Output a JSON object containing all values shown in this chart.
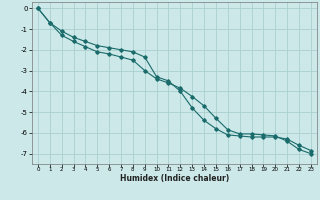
{
  "xlabel": "Humidex (Indice chaleur)",
  "ylabel": "",
  "background_color": "#cce8e8",
  "grid_color": "#aacfcf",
  "line_color": "#1a6b6b",
  "xlim": [
    -0.5,
    23.5
  ],
  "ylim": [
    -7.5,
    0.3
  ],
  "yticks": [
    0,
    -1,
    -2,
    -3,
    -4,
    -5,
    -6,
    -7
  ],
  "xticks": [
    0,
    1,
    2,
    3,
    4,
    5,
    6,
    7,
    8,
    9,
    10,
    11,
    12,
    13,
    14,
    15,
    16,
    17,
    18,
    19,
    20,
    21,
    22,
    23
  ],
  "line1_x": [
    0,
    1,
    2,
    3,
    4,
    5,
    6,
    7,
    8,
    9,
    10,
    11,
    12,
    13,
    14,
    15,
    16,
    17,
    18,
    19,
    20,
    21,
    22,
    23
  ],
  "line1_y": [
    0.0,
    -0.7,
    -1.1,
    -1.4,
    -1.6,
    -1.8,
    -1.9,
    -2.0,
    -2.1,
    -2.35,
    -3.3,
    -3.5,
    -4.0,
    -4.8,
    -5.4,
    -5.8,
    -6.1,
    -6.15,
    -6.2,
    -6.2,
    -6.2,
    -6.3,
    -6.6,
    -6.85
  ],
  "line2_x": [
    0,
    1,
    2,
    3,
    4,
    5,
    6,
    7,
    8,
    9,
    10,
    11,
    12,
    13,
    14,
    15,
    16,
    17,
    18,
    19,
    20,
    21,
    22,
    23
  ],
  "line2_y": [
    0.0,
    -0.7,
    -1.3,
    -1.6,
    -1.85,
    -2.1,
    -2.2,
    -2.35,
    -2.5,
    -3.0,
    -3.4,
    -3.6,
    -3.85,
    -4.25,
    -4.7,
    -5.3,
    -5.85,
    -6.05,
    -6.05,
    -6.1,
    -6.15,
    -6.4,
    -6.8,
    -7.0
  ]
}
